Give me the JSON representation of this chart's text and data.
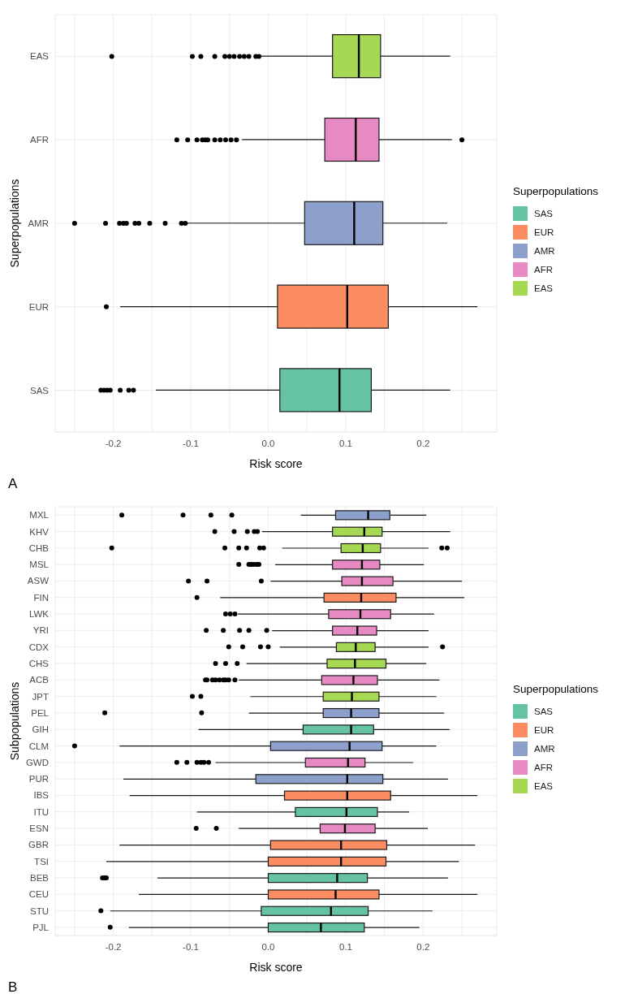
{
  "chart_data": [
    {
      "type": "box",
      "orientation": "horizontal",
      "xlabel": "Risk score",
      "ylabel": "Superpopulations",
      "legend_title": "Superpopulations",
      "legend": "right",
      "grid": true,
      "annotations": [
        "A"
      ],
      "categories": [
        "EAS",
        "AFR",
        "AMR",
        "EUR",
        "SAS"
      ],
      "xlim": [
        -0.275,
        0.295
      ],
      "xticks": [
        {
          "value": -0.25,
          "label": null
        },
        -0.2,
        {
          "value": -0.15,
          "label": null
        },
        -0.1,
        {
          "value": -0.05,
          "label": null
        },
        {
          "value": 0,
          "label": "0.0"
        },
        {
          "value": 0.05,
          "label": null
        },
        0.1,
        {
          "value": 0.15,
          "label": null
        },
        0.2,
        {
          "value": 0.25,
          "label": null
        }
      ],
      "series": [
        {
          "name": "SAS",
          "color": "#66c2a5",
          "boxes": [
            null,
            null,
            null,
            null,
            {
              "low": -0.145,
              "q1": 0.015,
              "median": 0.092,
              "q3": 0.133,
              "high": 0.235,
              "outliers": [
                -0.216,
                -0.212,
                -0.208,
                -0.204,
                -0.191,
                -0.18,
                -0.174
              ]
            }
          ]
        },
        {
          "name": "EUR",
          "color": "#fc8d62",
          "boxes": [
            null,
            null,
            null,
            {
              "low": -0.191,
              "q1": 0.012,
              "median": 0.102,
              "q3": 0.155,
              "high": 0.27,
              "outliers": [
                -0.209
              ]
            },
            null
          ]
        },
        {
          "name": "AMR",
          "color": "#8da0cb",
          "boxes": [
            null,
            null,
            {
              "low": -0.105,
              "q1": 0.047,
              "median": 0.111,
              "q3": 0.148,
              "high": 0.231,
              "outliers": [
                -0.25,
                -0.21,
                -0.192,
                -0.187,
                -0.183,
                -0.172,
                -0.167,
                -0.153,
                -0.133,
                -0.112,
                -0.107
              ]
            },
            null,
            null
          ]
        },
        {
          "name": "AFR",
          "color": "#e78ac3",
          "boxes": [
            null,
            {
              "low": -0.034,
              "q1": 0.073,
              "median": 0.113,
              "q3": 0.143,
              "high": 0.237,
              "outliers": [
                -0.118,
                -0.104,
                -0.092,
                -0.085,
                -0.081,
                -0.078,
                -0.069,
                -0.062,
                -0.055,
                -0.048,
                -0.041,
                0.25
              ]
            },
            null,
            null,
            null
          ]
        },
        {
          "name": "EAS",
          "color": "#a6d854",
          "boxes": [
            {
              "low": -0.009,
              "q1": 0.083,
              "median": 0.117,
              "q3": 0.145,
              "high": 0.235,
              "outliers": [
                -0.202,
                -0.098,
                -0.087,
                -0.069,
                -0.056,
                -0.05,
                -0.044,
                -0.037,
                -0.031,
                -0.025,
                -0.016,
                -0.012
              ]
            },
            null,
            null,
            null,
            null
          ]
        }
      ]
    },
    {
      "type": "box",
      "orientation": "horizontal",
      "xlabel": "Risk score",
      "ylabel": "Subpopulations",
      "legend_title": "Superpopulations",
      "legend": "right",
      "grid": true,
      "annotations": [
        "B"
      ],
      "categories": [
        "MXL",
        "KHV",
        "CHB",
        "MSL",
        "ASW",
        "FIN",
        "LWK",
        "YRI",
        "CDX",
        "CHS",
        "ACB",
        "JPT",
        "PEL",
        "GIH",
        "CLM",
        "GWD",
        "PUR",
        "IBS",
        "ITU",
        "ESN",
        "GBR",
        "TSI",
        "BEB",
        "CEU",
        "STU",
        "PJL"
      ],
      "xlim": [
        -0.275,
        0.295
      ],
      "xticks": [
        {
          "value": -0.25,
          "label": null
        },
        -0.2,
        {
          "value": -0.15,
          "label": null
        },
        -0.1,
        {
          "value": -0.05,
          "label": null
        },
        {
          "value": 0,
          "label": "0.0"
        },
        {
          "value": 0.05,
          "label": null
        },
        0.1,
        {
          "value": 0.15,
          "label": null
        },
        0.2,
        {
          "value": 0.25,
          "label": null
        }
      ],
      "series": [
        {
          "name": "SAS",
          "color": "#66c2a5",
          "boxes": [
            null,
            null,
            null,
            null,
            null,
            null,
            null,
            null,
            null,
            null,
            null,
            null,
            null,
            {
              "low": -0.09,
              "q1": 0.045,
              "median": 0.107,
              "q3": 0.136,
              "high": 0.234
            },
            null,
            null,
            null,
            null,
            {
              "low": -0.092,
              "q1": 0.035,
              "median": 0.101,
              "q3": 0.141,
              "high": 0.182
            },
            null,
            null,
            null,
            {
              "low": -0.143,
              "q1": 0.0,
              "median": 0.089,
              "q3": 0.128,
              "high": 0.232,
              "outliers": [
                -0.214,
                -0.211,
                -0.209
              ]
            },
            null,
            {
              "low": -0.204,
              "q1": -0.009,
              "median": 0.081,
              "q3": 0.129,
              "high": 0.212,
              "outliers": [
                -0.216
              ]
            },
            {
              "low": -0.18,
              "q1": 0.0,
              "median": 0.068,
              "q3": 0.124,
              "high": 0.195,
              "outliers": [
                -0.204
              ]
            }
          ]
        },
        {
          "name": "EUR",
          "color": "#fc8d62",
          "boxes": [
            null,
            null,
            null,
            null,
            null,
            {
              "low": -0.062,
              "q1": 0.072,
              "median": 0.12,
              "q3": 0.165,
              "high": 0.253,
              "outliers": [
                -0.092
              ]
            },
            null,
            null,
            null,
            null,
            null,
            null,
            null,
            null,
            null,
            null,
            null,
            {
              "low": -0.179,
              "q1": 0.021,
              "median": 0.102,
              "q3": 0.158,
              "high": 0.27
            },
            null,
            null,
            {
              "low": -0.192,
              "q1": 0.003,
              "median": 0.094,
              "q3": 0.153,
              "high": 0.267
            },
            {
              "low": -0.209,
              "q1": 0.0,
              "median": 0.094,
              "q3": 0.152,
              "high": 0.246
            },
            null,
            {
              "low": -0.167,
              "q1": 0.0,
              "median": 0.087,
              "q3": 0.143,
              "high": 0.27
            },
            null,
            null
          ]
        },
        {
          "name": "AMR",
          "color": "#8da0cb",
          "boxes": [
            {
              "low": 0.042,
              "q1": 0.087,
              "median": 0.129,
              "q3": 0.157,
              "high": 0.204,
              "outliers": [
                -0.189,
                -0.11,
                -0.074,
                -0.047
              ]
            },
            null,
            null,
            null,
            null,
            null,
            null,
            null,
            null,
            null,
            null,
            null,
            {
              "low": -0.025,
              "q1": 0.071,
              "median": 0.107,
              "q3": 0.143,
              "high": 0.227,
              "outliers": [
                -0.211,
                -0.086
              ]
            },
            null,
            {
              "low": -0.192,
              "q1": 0.003,
              "median": 0.105,
              "q3": 0.147,
              "high": 0.217,
              "outliers": [
                -0.25
              ]
            },
            null,
            {
              "low": -0.187,
              "q1": -0.016,
              "median": 0.102,
              "q3": 0.148,
              "high": 0.232
            },
            null,
            null,
            null,
            null,
            null,
            null,
            null,
            null,
            null
          ]
        },
        {
          "name": "AFR",
          "color": "#e78ac3",
          "boxes": [
            null,
            null,
            null,
            {
              "low": 0.009,
              "q1": 0.083,
              "median": 0.121,
              "q3": 0.144,
              "high": 0.201,
              "outliers": [
                -0.038,
                -0.025,
                -0.022,
                -0.019,
                -0.015,
                -0.012
              ]
            },
            {
              "low": 0.003,
              "q1": 0.095,
              "median": 0.121,
              "q3": 0.161,
              "high": 0.25,
              "outliers": [
                -0.103,
                -0.079,
                -0.009
              ]
            },
            null,
            {
              "low": -0.039,
              "q1": 0.078,
              "median": 0.119,
              "q3": 0.158,
              "high": 0.214,
              "outliers": [
                -0.055,
                -0.049,
                -0.043
              ]
            },
            {
              "low": 0.005,
              "q1": 0.083,
              "median": 0.115,
              "q3": 0.14,
              "high": 0.207,
              "outliers": [
                -0.08,
                -0.058,
                -0.037,
                -0.025,
                -0.002
              ]
            },
            null,
            null,
            {
              "low": -0.038,
              "q1": 0.069,
              "median": 0.11,
              "q3": 0.141,
              "high": 0.221,
              "outliers": [
                -0.081,
                -0.079,
                -0.072,
                -0.068,
                -0.063,
                -0.058,
                -0.055,
                -0.051,
                -0.043
              ]
            },
            null,
            null,
            null,
            null,
            {
              "low": -0.068,
              "q1": 0.048,
              "median": 0.103,
              "q3": 0.125,
              "high": 0.187,
              "outliers": [
                -0.118,
                -0.105,
                -0.092,
                -0.087,
                -0.083,
                -0.077
              ]
            },
            null,
            null,
            null,
            {
              "low": -0.038,
              "q1": 0.067,
              "median": 0.099,
              "q3": 0.138,
              "high": 0.206,
              "outliers": [
                -0.093,
                -0.067
              ]
            },
            null,
            null,
            null,
            null,
            null,
            null
          ]
        },
        {
          "name": "EAS",
          "color": "#a6d854",
          "boxes": [
            null,
            {
              "low": -0.008,
              "q1": 0.083,
              "median": 0.124,
              "q3": 0.147,
              "high": 0.235,
              "outliers": [
                -0.069,
                -0.044,
                -0.027,
                -0.018,
                -0.014
              ]
            },
            {
              "low": 0.018,
              "q1": 0.094,
              "median": 0.122,
              "q3": 0.145,
              "high": 0.207,
              "outliers": [
                -0.202,
                -0.056,
                -0.038,
                -0.028,
                -0.011,
                -0.006,
                0.224,
                0.231
              ]
            },
            null,
            null,
            null,
            null,
            null,
            {
              "low": 0.015,
              "q1": 0.088,
              "median": 0.113,
              "q3": 0.138,
              "high": 0.207,
              "outliers": [
                -0.051,
                -0.033,
                -0.01,
                0.0,
                0.225
              ]
            },
            {
              "low": -0.028,
              "q1": 0.076,
              "median": 0.112,
              "q3": 0.152,
              "high": 0.204,
              "outliers": [
                -0.068,
                -0.055,
                -0.04
              ]
            },
            null,
            {
              "low": -0.023,
              "q1": 0.071,
              "median": 0.108,
              "q3": 0.143,
              "high": 0.217,
              "outliers": [
                -0.098,
                -0.087
              ]
            },
            null,
            null,
            null,
            null,
            null,
            null,
            null,
            null,
            null,
            null,
            null,
            null,
            null,
            null
          ]
        }
      ]
    }
  ]
}
